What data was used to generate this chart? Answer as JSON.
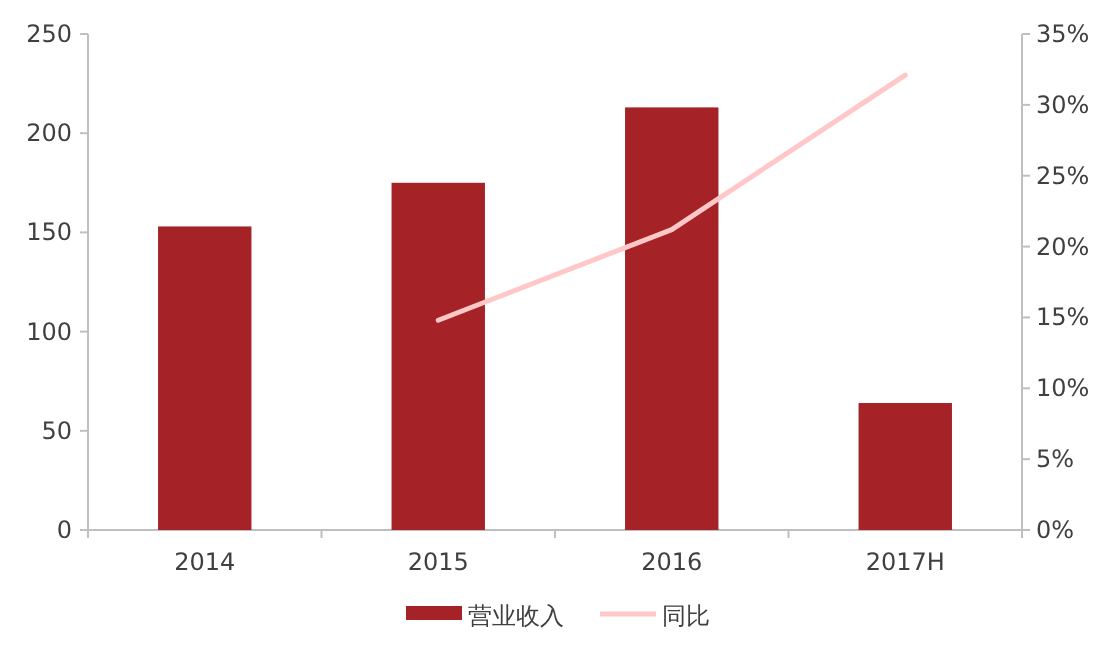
{
  "chart_data": {
    "type": "bar",
    "categories": [
      "2014",
      "2015",
      "2016",
      "2017H"
    ],
    "series": [
      {
        "name": "营业收入",
        "color": "#a52226",
        "values": [
          153,
          175,
          213,
          64
        ]
      },
      {
        "name": "同比",
        "type": "line",
        "axis": "y2",
        "color": "#ffc7c7",
        "values": [
          null,
          14.8,
          21.2,
          32.1
        ]
      }
    ],
    "ylim": [
      0,
      250
    ],
    "yticks": [
      0,
      50,
      100,
      150,
      200,
      250
    ],
    "y2lim": [
      0,
      35
    ],
    "y2ticks": [
      {
        "value": 0,
        "label": "0%"
      },
      {
        "value": 5,
        "label": "5%"
      },
      {
        "value": 10,
        "label": "10%"
      },
      {
        "value": 15,
        "label": "15%"
      },
      {
        "value": 20,
        "label": "20%"
      },
      {
        "value": 25,
        "label": "25%"
      },
      {
        "value": 30,
        "label": "30%"
      },
      {
        "value": 35,
        "label": "35%"
      }
    ],
    "grid": false,
    "legend": "bottom",
    "marker": "none"
  }
}
